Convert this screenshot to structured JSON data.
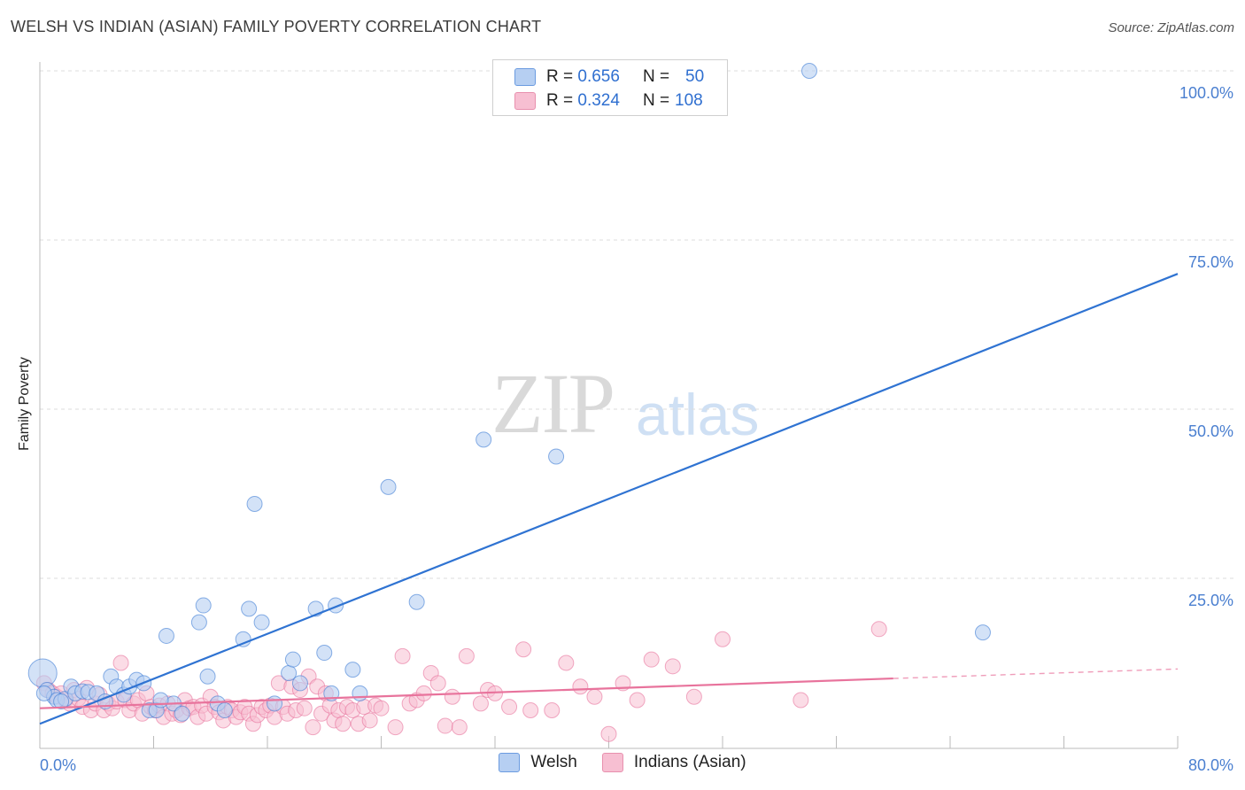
{
  "title": "WELSH VS INDIAN (ASIAN) FAMILY POVERTY CORRELATION CHART",
  "source": "Source: ZipAtlas.com",
  "watermark": {
    "part1": "ZIP",
    "part2": "atlas"
  },
  "colors": {
    "welsh": "#2f73d2",
    "welsh_fill": "#b6cff2",
    "indian": "#e8739c",
    "indian_fill": "#f7bfd2",
    "grid": "#dddddd",
    "tick": "#4a7fd0"
  },
  "legend": {
    "rows": [
      {
        "r_label": "R =",
        "r_value": "0.656",
        "n_label": "N =",
        "n_value": "50"
      },
      {
        "r_label": "R =",
        "r_value": "0.324",
        "n_label": "N =",
        "n_value": "108"
      }
    ]
  },
  "chart_data": {
    "type": "scatter",
    "title": "WELSH VS INDIAN (ASIAN) FAMILY POVERTY CORRELATION CHART",
    "xlabel": "",
    "ylabel": "Family Poverty",
    "xlim": [
      0,
      80
    ],
    "ylim": [
      0,
      102
    ],
    "x_tick_labels": [
      "0.0%",
      "80.0%"
    ],
    "y_ticks": [
      25,
      50,
      75,
      100
    ],
    "y_tick_labels": [
      "25.0%",
      "50.0%",
      "75.0%",
      "100.0%"
    ],
    "grid": true,
    "legend_position": "bottom",
    "series": [
      {
        "name": "Welsh",
        "color": "#2f73d2",
        "points": [
          [
            0.2,
            11.0
          ],
          [
            0.5,
            8.5
          ],
          [
            1.0,
            7.5
          ],
          [
            1.2,
            7.0
          ],
          [
            1.8,
            7.2
          ],
          [
            2.2,
            9.0
          ],
          [
            2.5,
            8.0
          ],
          [
            3.0,
            8.3
          ],
          [
            3.4,
            8.2
          ],
          [
            4.0,
            8.0
          ],
          [
            4.6,
            6.8
          ],
          [
            5.0,
            10.5
          ],
          [
            5.4,
            9.0
          ],
          [
            5.9,
            7.8
          ],
          [
            6.3,
            9.0
          ],
          [
            6.8,
            10.0
          ],
          [
            7.3,
            9.5
          ],
          [
            7.7,
            5.5
          ],
          [
            8.2,
            5.5
          ],
          [
            8.9,
            16.5
          ],
          [
            9.4,
            6.5
          ],
          [
            10.0,
            5.0
          ],
          [
            11.2,
            18.5
          ],
          [
            11.5,
            21.0
          ],
          [
            11.8,
            10.5
          ],
          [
            12.5,
            6.5
          ],
          [
            13.0,
            5.5
          ],
          [
            14.3,
            16.0
          ],
          [
            14.7,
            20.5
          ],
          [
            15.1,
            36.0
          ],
          [
            15.6,
            18.5
          ],
          [
            16.5,
            6.5
          ],
          [
            17.5,
            11.0
          ],
          [
            17.8,
            13.0
          ],
          [
            18.3,
            9.5
          ],
          [
            19.4,
            20.5
          ],
          [
            20.0,
            14.0
          ],
          [
            20.5,
            8.0
          ],
          [
            20.8,
            21.0
          ],
          [
            22.0,
            11.5
          ],
          [
            22.5,
            8.0
          ],
          [
            24.5,
            38.5
          ],
          [
            26.5,
            21.5
          ],
          [
            31.2,
            45.5
          ],
          [
            36.3,
            43.0
          ],
          [
            54.1,
            100.0
          ],
          [
            66.3,
            17.0
          ],
          [
            0.3,
            8.0
          ],
          [
            1.5,
            6.8
          ],
          [
            8.5,
            7.0
          ]
        ],
        "trend": {
          "x": [
            0,
            80
          ],
          "y": [
            3.5,
            70.0
          ]
        }
      },
      {
        "name": "Indians (Asian)",
        "color": "#e8739c",
        "points": [
          [
            0.3,
            9.5
          ],
          [
            0.6,
            8.5
          ],
          [
            0.9,
            8.0
          ],
          [
            1.2,
            7.5
          ],
          [
            1.5,
            8.0
          ],
          [
            1.8,
            7.0
          ],
          [
            2.1,
            6.5
          ],
          [
            2.4,
            8.5
          ],
          [
            2.7,
            7.2
          ],
          [
            3.0,
            6.0
          ],
          [
            3.3,
            8.8
          ],
          [
            3.6,
            5.5
          ],
          [
            3.9,
            6.5
          ],
          [
            4.2,
            7.8
          ],
          [
            4.5,
            5.5
          ],
          [
            4.8,
            6.5
          ],
          [
            5.1,
            5.8
          ],
          [
            5.4,
            6.8
          ],
          [
            5.7,
            12.5
          ],
          [
            6.0,
            7.0
          ],
          [
            6.3,
            5.5
          ],
          [
            6.6,
            6.5
          ],
          [
            6.9,
            7.0
          ],
          [
            7.2,
            5.0
          ],
          [
            7.5,
            8.0
          ],
          [
            7.8,
            6.0
          ],
          [
            8.1,
            5.5
          ],
          [
            8.4,
            6.2
          ],
          [
            8.7,
            4.5
          ],
          [
            9.0,
            6.5
          ],
          [
            9.3,
            5.0
          ],
          [
            9.6,
            5.5
          ],
          [
            9.9,
            4.8
          ],
          [
            10.2,
            7.0
          ],
          [
            10.5,
            5.8
          ],
          [
            10.8,
            6.0
          ],
          [
            11.1,
            4.5
          ],
          [
            11.4,
            6.2
          ],
          [
            11.7,
            5.0
          ],
          [
            12.0,
            7.5
          ],
          [
            12.3,
            6.0
          ],
          [
            12.6,
            5.2
          ],
          [
            12.9,
            4.0
          ],
          [
            13.2,
            6.0
          ],
          [
            13.5,
            5.5
          ],
          [
            13.8,
            4.5
          ],
          [
            14.1,
            5.2
          ],
          [
            14.4,
            6.0
          ],
          [
            14.7,
            5.0
          ],
          [
            15.0,
            3.5
          ],
          [
            15.3,
            4.8
          ],
          [
            15.6,
            6.0
          ],
          [
            15.9,
            5.5
          ],
          [
            16.2,
            6.2
          ],
          [
            16.5,
            4.5
          ],
          [
            16.8,
            9.5
          ],
          [
            17.1,
            6.0
          ],
          [
            17.4,
            5.0
          ],
          [
            17.7,
            9.0
          ],
          [
            18.0,
            5.5
          ],
          [
            18.3,
            8.5
          ],
          [
            18.6,
            5.8
          ],
          [
            18.9,
            10.5
          ],
          [
            19.2,
            3.0
          ],
          [
            19.5,
            9.0
          ],
          [
            19.8,
            5.0
          ],
          [
            20.1,
            8.0
          ],
          [
            20.4,
            6.2
          ],
          [
            20.7,
            4.0
          ],
          [
            21.0,
            5.5
          ],
          [
            21.3,
            3.5
          ],
          [
            21.6,
            6.0
          ],
          [
            22.0,
            5.5
          ],
          [
            22.4,
            3.5
          ],
          [
            22.8,
            6.0
          ],
          [
            23.2,
            4.0
          ],
          [
            23.6,
            6.2
          ],
          [
            24.0,
            5.8
          ],
          [
            25.0,
            3.0
          ],
          [
            25.5,
            13.5
          ],
          [
            26.0,
            6.5
          ],
          [
            26.5,
            7.0
          ],
          [
            27.0,
            8.0
          ],
          [
            27.5,
            11.0
          ],
          [
            28.0,
            9.5
          ],
          [
            28.5,
            3.2
          ],
          [
            29.0,
            7.5
          ],
          [
            29.5,
            3.0
          ],
          [
            30.0,
            13.5
          ],
          [
            31.0,
            6.5
          ],
          [
            31.5,
            8.5
          ],
          [
            32.0,
            8.0
          ],
          [
            33.0,
            6.0
          ],
          [
            34.0,
            14.5
          ],
          [
            34.5,
            5.5
          ],
          [
            36.0,
            5.5
          ],
          [
            37.0,
            12.5
          ],
          [
            38.0,
            9.0
          ],
          [
            39.0,
            7.5
          ],
          [
            40.0,
            2.0
          ],
          [
            41.0,
            9.5
          ],
          [
            42.0,
            7.0
          ],
          [
            43.0,
            13.0
          ],
          [
            44.5,
            12.0
          ],
          [
            46.0,
            7.5
          ],
          [
            48.0,
            16.0
          ],
          [
            53.5,
            7.0
          ],
          [
            59.0,
            17.5
          ]
        ],
        "trend": {
          "x": [
            0,
            60
          ],
          "y": [
            5.8,
            10.2
          ]
        },
        "trend_dashed": {
          "x": [
            60,
            80
          ],
          "y": [
            10.2,
            11.6
          ]
        }
      }
    ]
  },
  "bottom_legend": [
    {
      "label": "Welsh"
    },
    {
      "label": "Indians (Asian)"
    }
  ]
}
